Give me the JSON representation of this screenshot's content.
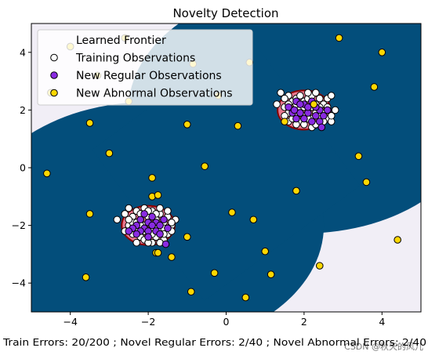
{
  "chart_data": {
    "type": "scatter",
    "title": "Novelty Detection",
    "xlabel": "Train Errors: 20/200 ; Novel Regular Errors: 2/40 ; Novel Abnormal Errors: 2/40",
    "xlim": [
      -5,
      5
    ],
    "ylim": [
      -5,
      5
    ],
    "x_ticks": [
      -4,
      -2,
      0,
      2,
      4
    ],
    "y_ticks": [
      -4,
      -2,
      0,
      2,
      4
    ],
    "tick_labels": {
      "x": [
        "−4",
        "−2",
        "0",
        "2",
        "4"
      ],
      "y": [
        "−4",
        "−2",
        "0",
        "2",
        "4"
      ]
    },
    "grid": false,
    "legend_position": "top-left",
    "watermark": "CSDN @秋天的风儿",
    "legend": [
      {
        "label": "Learned Frontier",
        "marker": "none"
      },
      {
        "label": "Training Observations",
        "marker": "circle",
        "fill": "#ffffff"
      },
      {
        "label": "New Regular Observations",
        "marker": "circle",
        "fill": "#8a2be2"
      },
      {
        "label": "New Abnormal Observations",
        "marker": "circle",
        "fill": "#ffd700"
      }
    ],
    "decision_function": {
      "centers": [
        [
          2,
          2
        ],
        [
          -2,
          -2
        ]
      ],
      "fill_levels_dark_to_light": [
        "#034e7b",
        "#0570b0",
        "#3690c0",
        "#74a9cf",
        "#a6bddb",
        "#d0d1e6",
        "#f1eef6"
      ],
      "frontier_color": "#8b0000",
      "inlier_fill": "#e9788f"
    },
    "series": [
      {
        "name": "Training Observations",
        "color": "#ffffff",
        "points": [
          [
            1.6,
            2.5
          ],
          [
            1.7,
            2.3
          ],
          [
            1.8,
            2.4
          ],
          [
            1.9,
            2.5
          ],
          [
            2.0,
            2.3
          ],
          [
            2.1,
            2.4
          ],
          [
            2.2,
            2.5
          ],
          [
            2.3,
            2.6
          ],
          [
            2.4,
            2.4
          ],
          [
            2.5,
            2.2
          ],
          [
            2.6,
            2.4
          ],
          [
            1.5,
            2.1
          ],
          [
            1.6,
            1.9
          ],
          [
            1.7,
            2.0
          ],
          [
            1.8,
            1.8
          ],
          [
            1.9,
            1.6
          ],
          [
            2.0,
            1.8
          ],
          [
            2.1,
            2.0
          ],
          [
            2.2,
            1.7
          ],
          [
            2.3,
            1.9
          ],
          [
            2.4,
            2.1
          ],
          [
            2.5,
            1.9
          ],
          [
            2.6,
            1.7
          ],
          [
            2.7,
            1.6
          ],
          [
            1.6,
            1.6
          ],
          [
            1.8,
            1.5
          ],
          [
            2.0,
            1.5
          ],
          [
            2.2,
            1.4
          ],
          [
            2.4,
            1.5
          ],
          [
            1.4,
            2.6
          ],
          [
            1.3,
            2.2
          ],
          [
            2.7,
            2.5
          ],
          [
            2.8,
            2.0
          ],
          [
            1.5,
            2.4
          ],
          [
            2.1,
            2.6
          ],
          [
            1.9,
            2.1
          ],
          [
            2.3,
            2.2
          ],
          [
            1.7,
            1.7
          ],
          [
            2.5,
            1.6
          ],
          [
            2.0,
            2.1
          ],
          [
            1.8,
            2.2
          ],
          [
            2.2,
            2.1
          ],
          [
            2.4,
            1.8
          ],
          [
            1.6,
            2.2
          ],
          [
            2.6,
            2.1
          ],
          [
            1.9,
            1.9
          ],
          [
            2.1,
            1.7
          ],
          [
            2.3,
            1.5
          ],
          [
            2.7,
            1.8
          ],
          [
            1.5,
            1.8
          ],
          [
            -2.5,
            -1.4
          ],
          [
            -2.3,
            -1.5
          ],
          [
            -2.1,
            -1.4
          ],
          [
            -1.9,
            -1.5
          ],
          [
            -1.7,
            -1.6
          ],
          [
            -1.5,
            -1.7
          ],
          [
            -2.4,
            -1.7
          ],
          [
            -2.2,
            -1.8
          ],
          [
            -2.0,
            -1.7
          ],
          [
            -1.8,
            -1.8
          ],
          [
            -1.6,
            -1.9
          ],
          [
            -1.4,
            -2.0
          ],
          [
            -2.5,
            -2.0
          ],
          [
            -2.3,
            -2.1
          ],
          [
            -2.1,
            -2.0
          ],
          [
            -1.9,
            -2.1
          ],
          [
            -1.7,
            -2.2
          ],
          [
            -1.5,
            -2.3
          ],
          [
            -2.4,
            -2.3
          ],
          [
            -2.2,
            -2.4
          ],
          [
            -2.0,
            -2.3
          ],
          [
            -1.8,
            -2.4
          ],
          [
            -1.6,
            -2.5
          ],
          [
            -2.3,
            -2.6
          ],
          [
            -2.1,
            -2.5
          ],
          [
            -1.9,
            -2.6
          ],
          [
            -2.8,
            -1.8
          ],
          [
            -2.6,
            -2.2
          ],
          [
            -1.3,
            -1.8
          ],
          [
            -1.4,
            -2.2
          ],
          [
            -2.2,
            -1.6
          ],
          [
            -2.0,
            -1.9
          ],
          [
            -1.8,
            -2.0
          ],
          [
            -2.4,
            -1.9
          ],
          [
            -1.6,
            -2.1
          ],
          [
            -2.1,
            -2.2
          ],
          [
            -1.7,
            -1.4
          ],
          [
            -1.9,
            -2.3
          ],
          [
            -2.3,
            -1.9
          ],
          [
            -1.5,
            -1.5
          ],
          [
            -2.6,
            -1.6
          ],
          [
            -2.0,
            -2.6
          ],
          [
            -1.7,
            -2.6
          ],
          [
            -2.2,
            -2.0
          ],
          [
            -1.8,
            -1.6
          ],
          [
            -2.4,
            -2.1
          ],
          [
            -1.6,
            -2.3
          ],
          [
            -2.0,
            -1.5
          ],
          [
            -2.5,
            -1.8
          ],
          [
            -1.4,
            -1.9
          ]
        ]
      },
      {
        "name": "New Regular Observations",
        "color": "#8a2be2",
        "points": [
          [
            1.8,
            2.3
          ],
          [
            2.0,
            2.2
          ],
          [
            2.2,
            2.3
          ],
          [
            2.4,
            2.0
          ],
          [
            1.9,
            1.9
          ],
          [
            2.1,
            1.9
          ],
          [
            2.3,
            1.8
          ],
          [
            1.7,
            1.9
          ],
          [
            2.5,
            1.8
          ],
          [
            2.0,
            1.7
          ],
          [
            2.2,
            1.6
          ],
          [
            1.6,
            2.1
          ],
          [
            2.6,
            2.0
          ],
          [
            1.8,
            1.7
          ],
          [
            2.4,
            1.6
          ],
          [
            2.1,
            2.1
          ],
          [
            1.9,
            2.2
          ],
          [
            2.3,
            2.1
          ],
          [
            2.45,
            1.4
          ],
          [
            1.75,
            2.0
          ],
          [
            -2.2,
            -1.8
          ],
          [
            -2.0,
            -1.9
          ],
          [
            -1.8,
            -1.9
          ],
          [
            -2.1,
            -2.1
          ],
          [
            -1.9,
            -2.0
          ],
          [
            -2.3,
            -2.0
          ],
          [
            -1.7,
            -2.0
          ],
          [
            -2.0,
            -2.2
          ],
          [
            -1.8,
            -2.2
          ],
          [
            -2.2,
            -2.2
          ],
          [
            -1.6,
            -1.8
          ],
          [
            -2.4,
            -2.1
          ],
          [
            -1.9,
            -1.7
          ],
          [
            -2.1,
            -1.6
          ],
          [
            -1.5,
            -2.1
          ],
          [
            -2.3,
            -2.3
          ],
          [
            -1.55,
            -2.65
          ],
          [
            -2.0,
            -2.4
          ],
          [
            -1.7,
            -2.3
          ],
          [
            -2.5,
            -2.2
          ]
        ]
      },
      {
        "name": "New Abnormal Observations",
        "color": "#ffd700",
        "points": [
          [
            -3.5,
            1.55
          ],
          [
            -3.5,
            -1.6
          ],
          [
            -2.5,
            2.3
          ],
          [
            -0.85,
            3.6
          ],
          [
            0.6,
            3.65
          ],
          [
            0.3,
            1.45
          ],
          [
            -0.55,
            0.05
          ],
          [
            -1.9,
            -0.35
          ],
          [
            -1.9,
            -1.0
          ],
          [
            -1.75,
            -0.95
          ],
          [
            0.15,
            -1.55
          ],
          [
            0.7,
            -1.8
          ],
          [
            -1.0,
            -2.4
          ],
          [
            -1.8,
            -2.95
          ],
          [
            -1.75,
            -2.95
          ],
          [
            -0.3,
            -3.65
          ],
          [
            1.15,
            -3.7
          ],
          [
            2.4,
            -3.4
          ],
          [
            2.25,
            2.2
          ],
          [
            1.5,
            1.6
          ],
          [
            -3.3,
            3.2
          ],
          [
            -1.4,
            -3.1
          ],
          [
            -3.0,
            0.5
          ],
          [
            3.6,
            -0.5
          ],
          [
            -4.0,
            4.2
          ],
          [
            4.0,
            4.0
          ],
          [
            3.4,
            0.4
          ],
          [
            -3.6,
            -3.8
          ],
          [
            -1.0,
            1.5
          ],
          [
            1.0,
            -2.9
          ],
          [
            3.8,
            2.8
          ],
          [
            -0.2,
            2.5
          ],
          [
            -4.6,
            -0.2
          ],
          [
            0.5,
            -4.5
          ],
          [
            2.9,
            4.5
          ],
          [
            -2.6,
            4.5
          ],
          [
            4.4,
            -2.5
          ],
          [
            -4.5,
            2.6
          ],
          [
            1.8,
            -0.8
          ],
          [
            -0.9,
            -4.3
          ]
        ]
      }
    ]
  }
}
